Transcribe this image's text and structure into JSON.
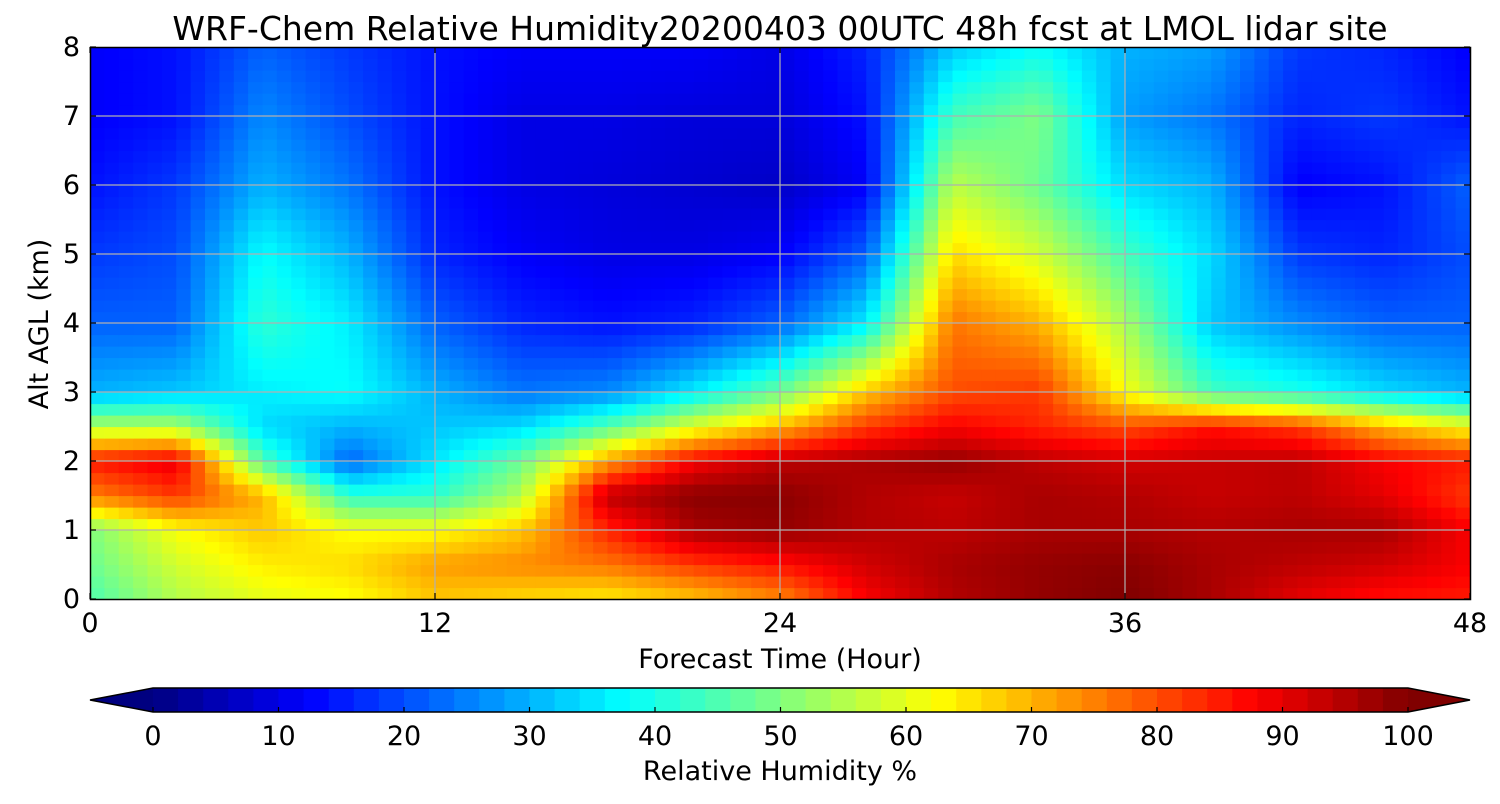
{
  "chart_data": {
    "type": "heatmap",
    "title": "WRF-Chem Relative Humidity20200403 00UTC 48h fcst at LMOL lidar site",
    "xlabel": "Forecast Time (Hour)",
    "ylabel": "Alt AGL (km)",
    "xlim": [
      0,
      48
    ],
    "ylim": [
      0,
      8
    ],
    "x_ticks": [
      0,
      12,
      24,
      36,
      48
    ],
    "y_ticks": [
      0,
      1,
      2,
      3,
      4,
      5,
      6,
      7,
      8
    ],
    "grid": true,
    "colormap": "jet",
    "value_units": "%",
    "x": [
      0,
      3,
      6,
      9,
      12,
      15,
      18,
      21,
      24,
      27,
      30,
      33,
      36,
      39,
      42,
      45,
      48
    ],
    "y": [
      0,
      0.5,
      1,
      1.5,
      2,
      2.5,
      3,
      4,
      5,
      6,
      7,
      8
    ],
    "z": [
      [
        45,
        55,
        60,
        62,
        68,
        66,
        64,
        68,
        74,
        88,
        95,
        98,
        100,
        96,
        90,
        86,
        85
      ],
      [
        48,
        58,
        64,
        66,
        72,
        74,
        76,
        82,
        86,
        92,
        96,
        98,
        99,
        96,
        94,
        92,
        88
      ],
      [
        50,
        62,
        68,
        62,
        62,
        68,
        84,
        96,
        98,
        95,
        94,
        96,
        96,
        95,
        96,
        96,
        88
      ],
      [
        75,
        82,
        70,
        42,
        42,
        55,
        94,
        99,
        99,
        95,
        93,
        96,
        95,
        93,
        94,
        90,
        82
      ],
      [
        85,
        90,
        45,
        22,
        35,
        48,
        72,
        88,
        94,
        96,
        98,
        94,
        92,
        93,
        94,
        88,
        85
      ],
      [
        55,
        55,
        34,
        30,
        32,
        34,
        46,
        60,
        70,
        82,
        88,
        84,
        80,
        86,
        82,
        70,
        62
      ],
      [
        30,
        32,
        36,
        38,
        30,
        24,
        26,
        36,
        48,
        68,
        80,
        82,
        62,
        44,
        40,
        34,
        30
      ],
      [
        22,
        22,
        42,
        36,
        22,
        16,
        14,
        16,
        22,
        36,
        76,
        70,
        54,
        32,
        26,
        22,
        22
      ],
      [
        18,
        20,
        38,
        30,
        16,
        12,
        10,
        10,
        12,
        22,
        66,
        58,
        44,
        34,
        18,
        16,
        20
      ],
      [
        14,
        18,
        30,
        24,
        14,
        10,
        9,
        8,
        7,
        12,
        56,
        48,
        34,
        30,
        12,
        14,
        22
      ],
      [
        12,
        14,
        26,
        20,
        14,
        10,
        10,
        9,
        9,
        14,
        44,
        50,
        28,
        24,
        16,
        18,
        14
      ],
      [
        12,
        14,
        22,
        18,
        14,
        12,
        12,
        12,
        10,
        16,
        32,
        38,
        30,
        28,
        18,
        16,
        12
      ]
    ],
    "colorbar": {
      "label": "Relative Humidity %",
      "ticks": [
        0,
        10,
        20,
        30,
        40,
        50,
        60,
        70,
        80,
        90,
        100
      ],
      "extend": "both",
      "orientation": "horizontal",
      "placement": "bottom"
    }
  }
}
